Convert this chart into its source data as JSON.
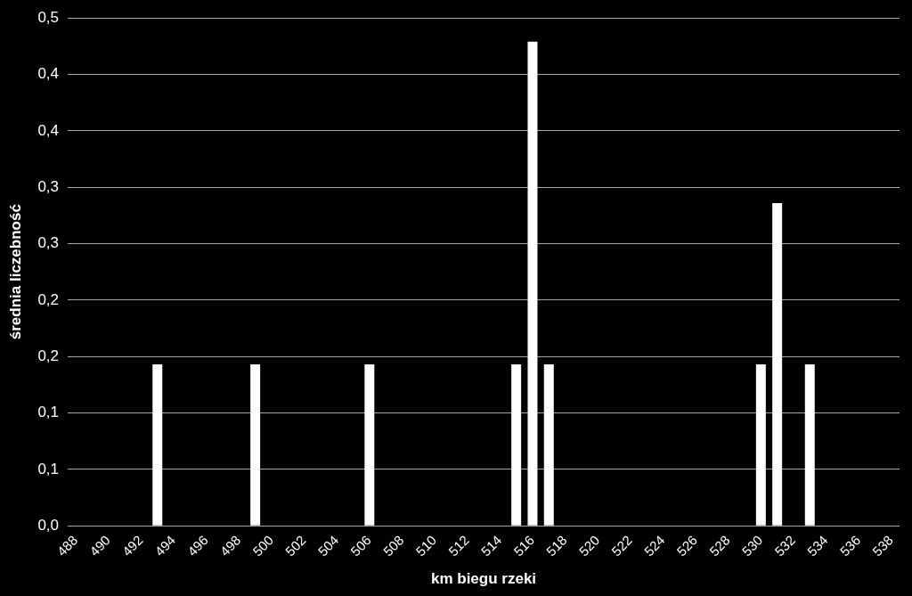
{
  "chart_data": {
    "type": "bar",
    "xlabel": "km biegu rzeki",
    "ylabel": "średnia liczebność",
    "categories": [
      "488",
      null,
      "490",
      null,
      "492",
      null,
      "494",
      null,
      "496",
      null,
      "498",
      null,
      "500",
      null,
      "502",
      null,
      "504",
      null,
      "506",
      null,
      "508",
      null,
      "510",
      null,
      "512",
      null,
      "514",
      null,
      "516",
      null,
      "518",
      null,
      "520",
      null,
      "522",
      null,
      "524",
      null,
      "526",
      null,
      "528",
      null,
      "530",
      null,
      "532",
      null,
      "534",
      null,
      "536",
      null,
      "538"
    ],
    "values": [
      0,
      0,
      0,
      0,
      0,
      0.143,
      0,
      0,
      0,
      0,
      0,
      0.143,
      0,
      0,
      0,
      0,
      0,
      0,
      0.143,
      0,
      0,
      0,
      0,
      0,
      0,
      0,
      0,
      0.143,
      0.429,
      0.143,
      0,
      0,
      0,
      0,
      0,
      0,
      0,
      0,
      0,
      0,
      0,
      0,
      0.143,
      0.286,
      0,
      0.143,
      0,
      0,
      0,
      0,
      0
    ],
    "color": "#ffffff",
    "ylim": [
      0,
      0.45
    ],
    "yticks": [
      {
        "value": 0,
        "label": "0,0"
      },
      {
        "value": 0.05,
        "label": "0,1"
      },
      {
        "value": 0.1,
        "label": "0,1"
      },
      {
        "value": 0.15,
        "label": "0,2"
      },
      {
        "value": 0.2,
        "label": "0,2"
      },
      {
        "value": 0.25,
        "label": "0,3"
      },
      {
        "value": 0.3,
        "label": "0,3"
      },
      {
        "value": 0.35,
        "label": "0,4"
      },
      {
        "value": 0.4,
        "label": "0,4"
      },
      {
        "value": 0.45,
        "label": "0,5"
      }
    ],
    "grid": "y"
  }
}
